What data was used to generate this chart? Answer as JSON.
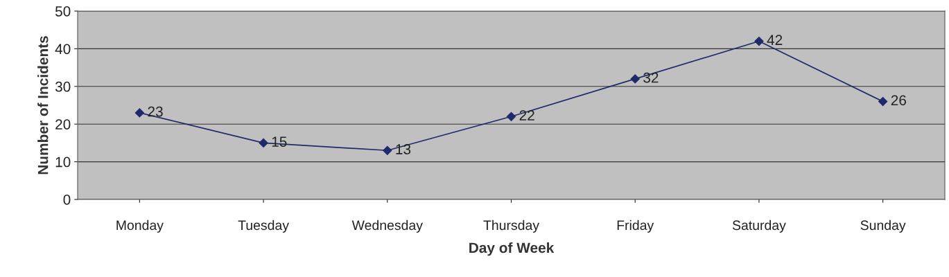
{
  "chart_data": {
    "type": "line",
    "xlabel": "Day of Week",
    "ylabel": "Number of Incidents",
    "categories": [
      "Monday",
      "Tuesday",
      "Wednesday",
      "Thursday",
      "Friday",
      "Saturday",
      "Sunday"
    ],
    "series": [
      {
        "color": "#1f2a6b",
        "values": [
          23,
          15,
          13,
          22,
          32,
          42,
          26
        ]
      }
    ],
    "ylim": [
      0,
      50
    ],
    "yticks": [
      0,
      10,
      20,
      30,
      40,
      50
    ],
    "grid": "y",
    "marker": "diamond",
    "line_style": "solid",
    "data_labels": true
  }
}
